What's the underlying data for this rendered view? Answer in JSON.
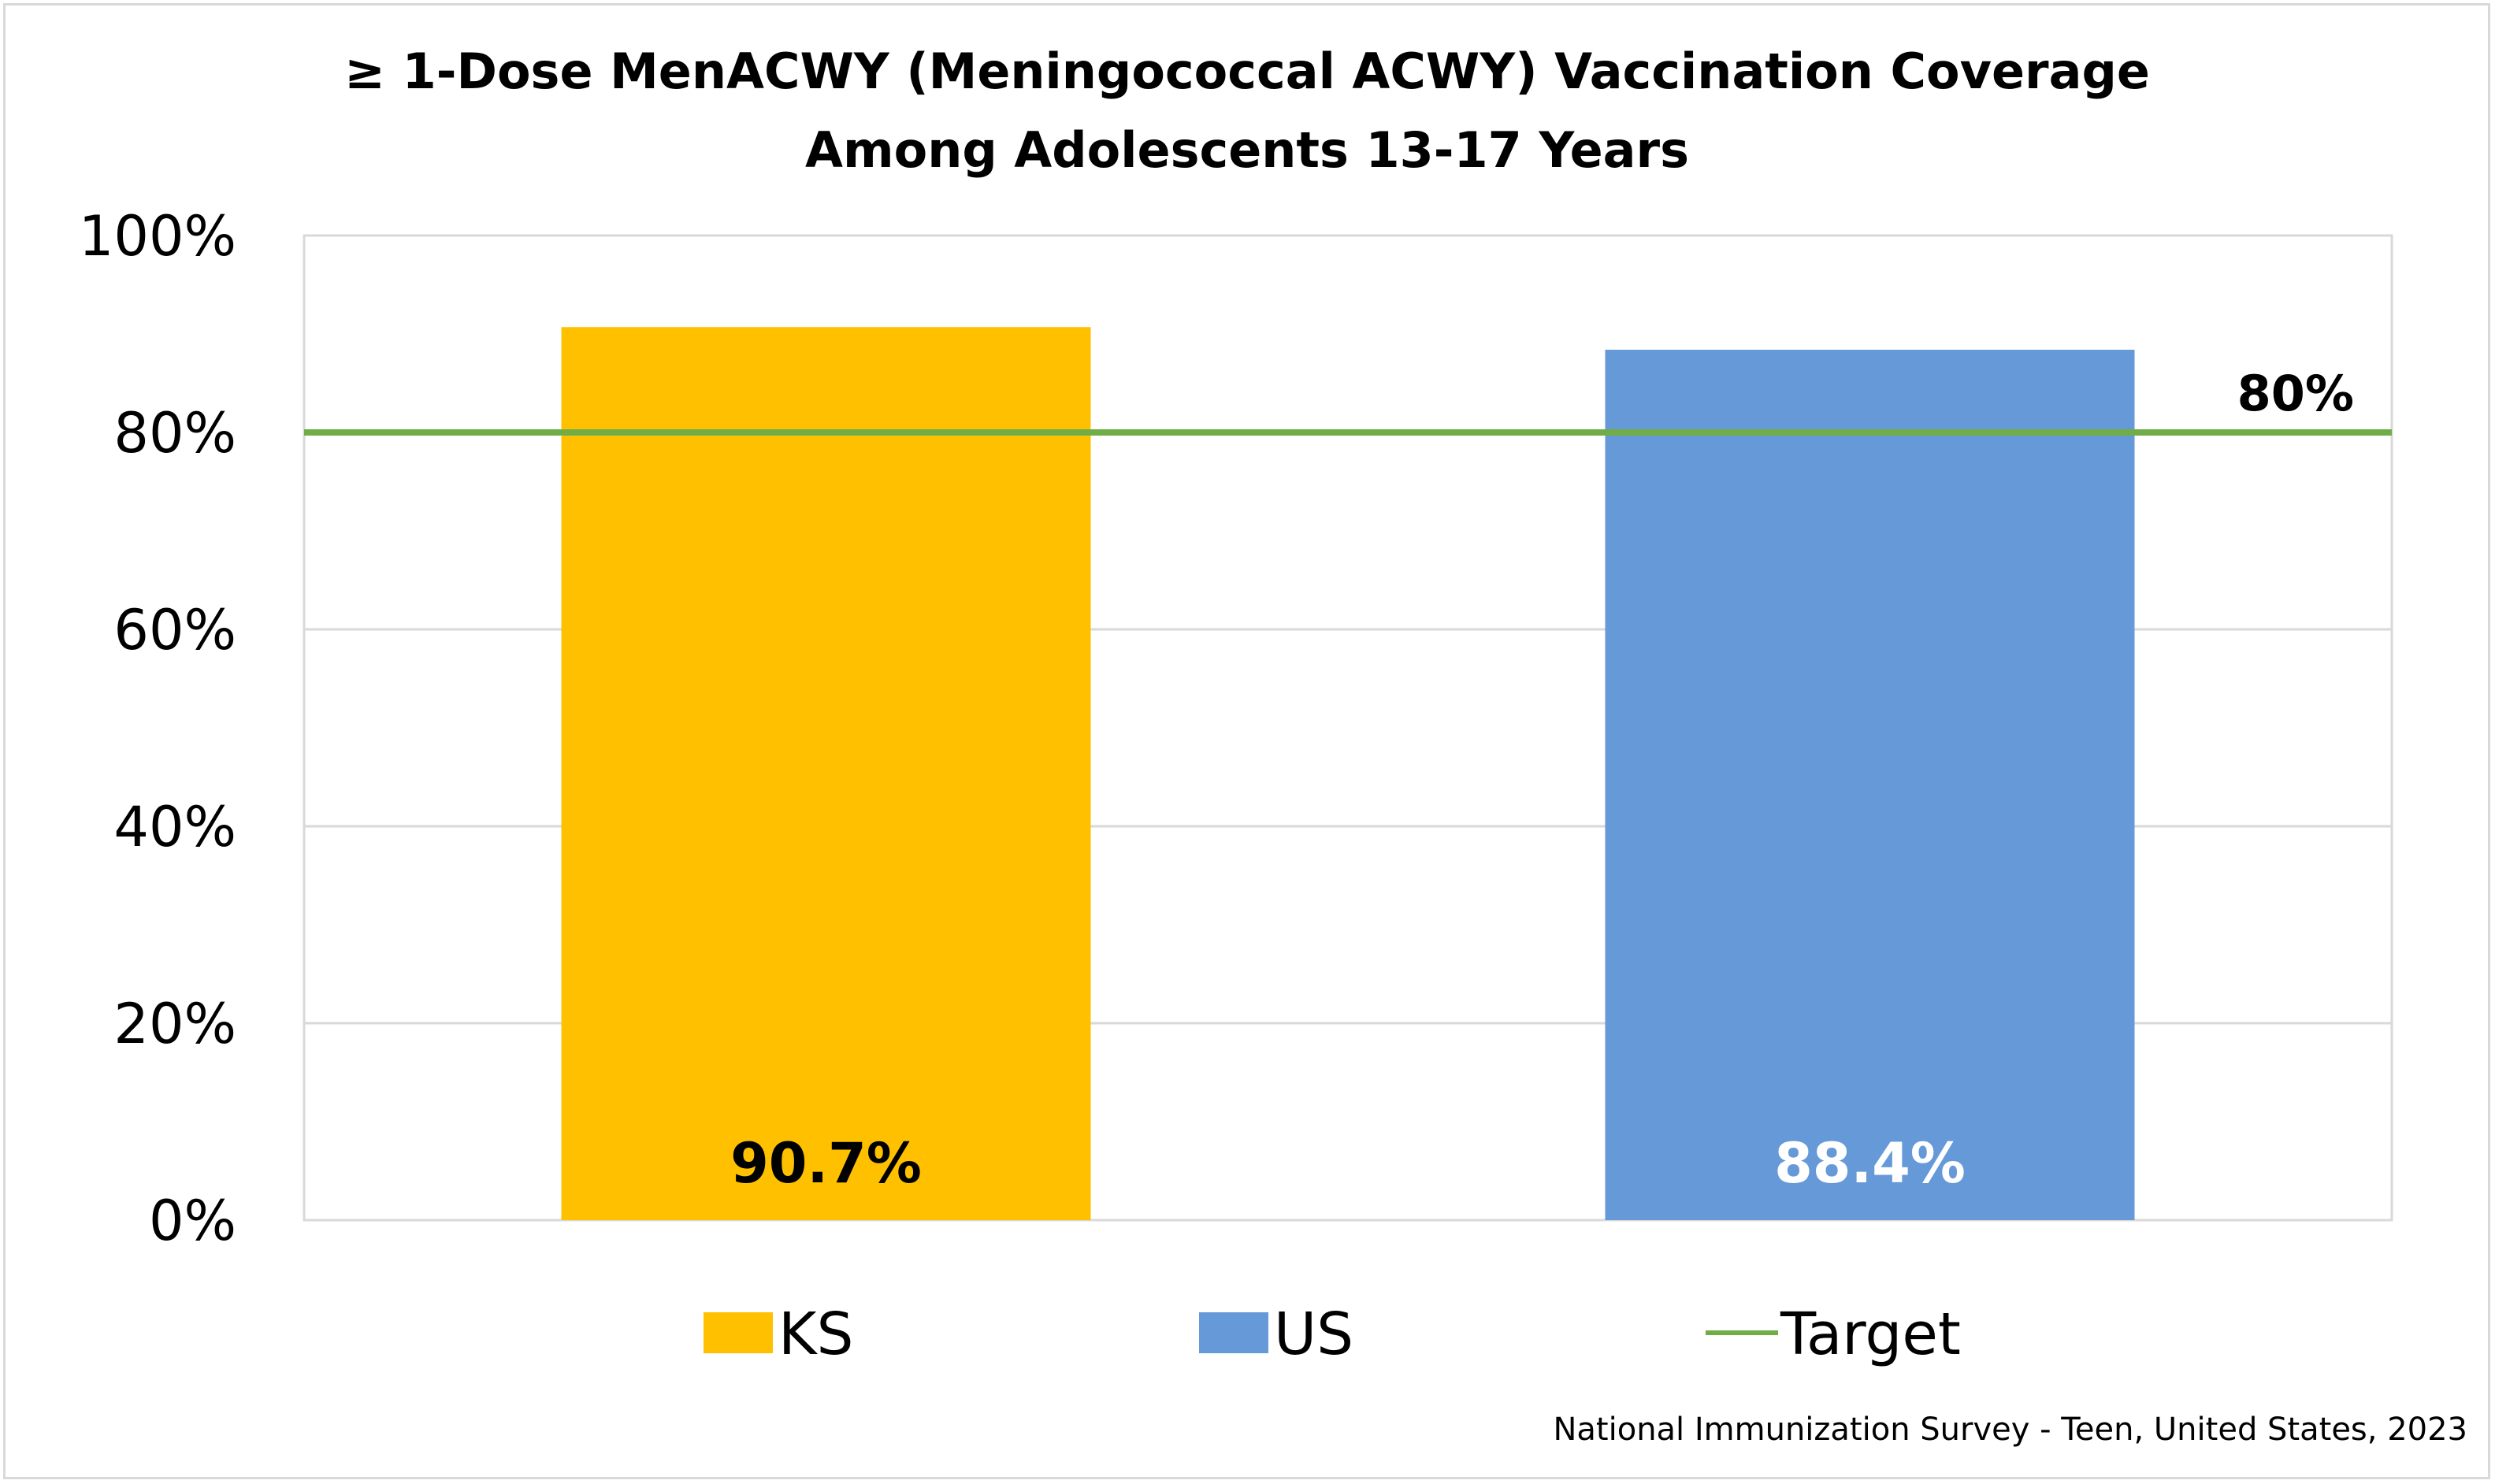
{
  "chart_data": {
    "type": "bar",
    "title_lines": [
      "≥ 1-Dose MenACWY (Meningococcal ACWY) Vaccination Coverage",
      "Among Adolescents 13-17 Years"
    ],
    "categories": [
      "KS",
      "US"
    ],
    "series": [
      {
        "name": "KS",
        "value": 90.7,
        "label": "90.7%",
        "color": "#ffc000",
        "label_color": "#000000"
      },
      {
        "name": "US",
        "value": 88.4,
        "label": "88.4%",
        "color": "#6699d8",
        "label_color": "#ffffff"
      }
    ],
    "target": {
      "name": "Target",
      "value": 80,
      "label": "80%",
      "color": "#70ad47"
    },
    "ylim": [
      0,
      100
    ],
    "yticks": [
      {
        "value": 0,
        "label": "0%"
      },
      {
        "value": 20,
        "label": "20%"
      },
      {
        "value": 40,
        "label": "40%"
      },
      {
        "value": 60,
        "label": "60%"
      },
      {
        "value": 80,
        "label": "80%"
      },
      {
        "value": 100,
        "label": "100%"
      }
    ],
    "gridlines": true,
    "legend_position": "bottom",
    "source": "National Immunization Survey - Teen, United States, 2023"
  }
}
